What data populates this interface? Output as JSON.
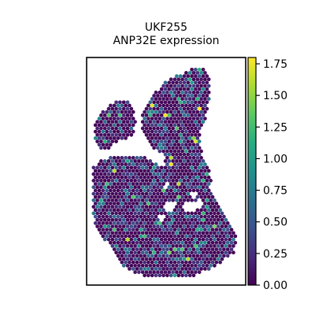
{
  "chart_data": {
    "type": "scatter",
    "subtype": "spatial-hexbin",
    "title_line1": "UKF255",
    "title_line2": "ANP32E expression",
    "xlabel": "",
    "ylabel": "",
    "axes_ticks_visible": false,
    "colormap": "viridis",
    "colormap_stops": [
      "#440154",
      "#472c7a",
      "#3b518b",
      "#2c718e",
      "#21908d",
      "#27ad81",
      "#5cc863",
      "#aadc32",
      "#fde725"
    ],
    "background_color": "#ffffff",
    "colorbar": {
      "min": 0.0,
      "max": 1.8,
      "ticks": [
        0.0,
        0.25,
        0.5,
        0.75,
        1.0,
        1.25,
        1.5,
        1.75
      ],
      "tick_labels": [
        "0.00",
        "0.25",
        "0.50",
        "0.75",
        "1.00",
        "1.25",
        "1.50",
        "1.75"
      ]
    },
    "distribution": {
      "mostly_zero": true,
      "typical_range": [
        0.0,
        0.75
      ],
      "sparse_high_range": [
        0.75,
        1.8
      ]
    },
    "grid": false,
    "legend": "colorbar-right"
  }
}
